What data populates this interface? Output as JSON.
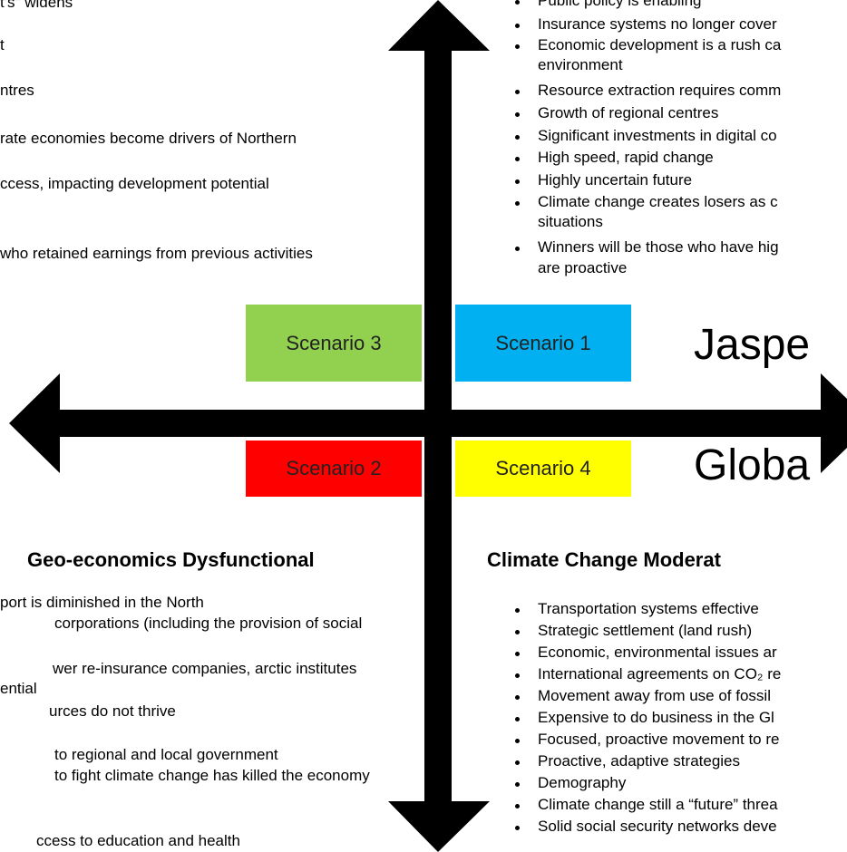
{
  "top_left": {
    "lines": [
      "t's\" widens",
      "t",
      "ntres",
      "rate economies become drivers of Northern",
      "ccess, impacting development potential",
      "who retained earnings from previous activities"
    ]
  },
  "top_right": {
    "items": [
      "Public policy is enabling",
      "Insurance systems no longer cover",
      "Economic development is a rush ca",
      "environment",
      "Resource extraction requires comm",
      "Growth of regional centres",
      "Significant investments in digital co",
      "High speed, rapid change",
      "Highly uncertain future",
      "Climate change creates losers as c",
      "situations",
      "Winners will be those who have hig",
      "are proactive"
    ]
  },
  "scenarios": [
    "Scenario 3",
    "Scenario 1",
    "Scenario 2",
    "Scenario 4"
  ],
  "axis_labels": [
    "Jaspe",
    "Globa"
  ],
  "bottom_left": {
    "title": "Geo-economics Dysfunctional",
    "lines": [
      "port is diminished in the North",
      "corporations (including the provision of social",
      "wer re-insurance companies, arctic institutes",
      "ential",
      "urces do not thrive",
      "to regional and local government",
      "to fight climate change has killed the economy",
      "ccess to education and health"
    ]
  },
  "bottom_right": {
    "title": "Climate Change Moderat",
    "items": [
      "Transportation systems effective",
      "Strategic settlement (land rush)",
      "Economic, environmental issues ar",
      "International agreements on CO₂ re",
      "Movement away from use of fossil",
      "Expensive to do business in the Gl",
      "Focused, proactive movement to re",
      "Proactive, adaptive strategies",
      "Demography",
      "Climate change still a “future” threa",
      "Solid social security networks deve"
    ]
  }
}
